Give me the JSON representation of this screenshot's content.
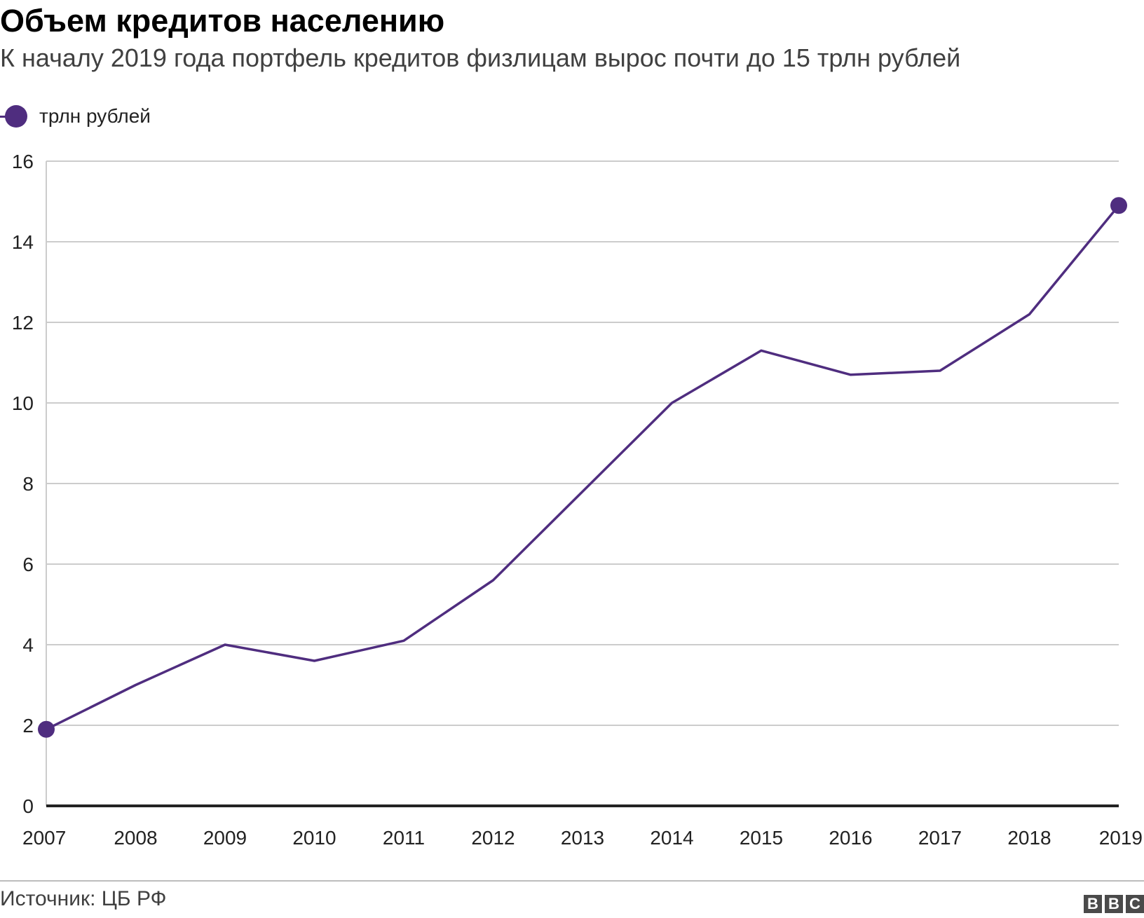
{
  "chart_data": {
    "type": "line",
    "title": "Объем кредитов населению",
    "subtitle": "К началу 2019 года портфель кредитов физлицам вырос почти до 15 трлн рублей",
    "x": [
      "2007",
      "2008",
      "2009",
      "2010",
      "2011",
      "2012",
      "2013",
      "2014",
      "2015",
      "2016",
      "2017",
      "2018",
      "2019"
    ],
    "series": [
      {
        "name": "трлн рублей",
        "color": "#4f2d7f",
        "values": [
          1.9,
          3.0,
          4.0,
          3.6,
          4.1,
          5.6,
          7.8,
          10.0,
          11.3,
          10.7,
          10.8,
          12.2,
          14.9
        ],
        "markers": "first-and-last"
      }
    ],
    "ylim": [
      0,
      16
    ],
    "yticks": [
      0,
      2,
      4,
      6,
      8,
      10,
      12,
      14,
      16
    ],
    "xlabel": "",
    "ylabel": "",
    "grid": "horizontal",
    "legend_position": "top-left"
  },
  "footer": {
    "source": "Источник: ЦБ РФ",
    "logo_letters": [
      "B",
      "B",
      "C"
    ]
  }
}
